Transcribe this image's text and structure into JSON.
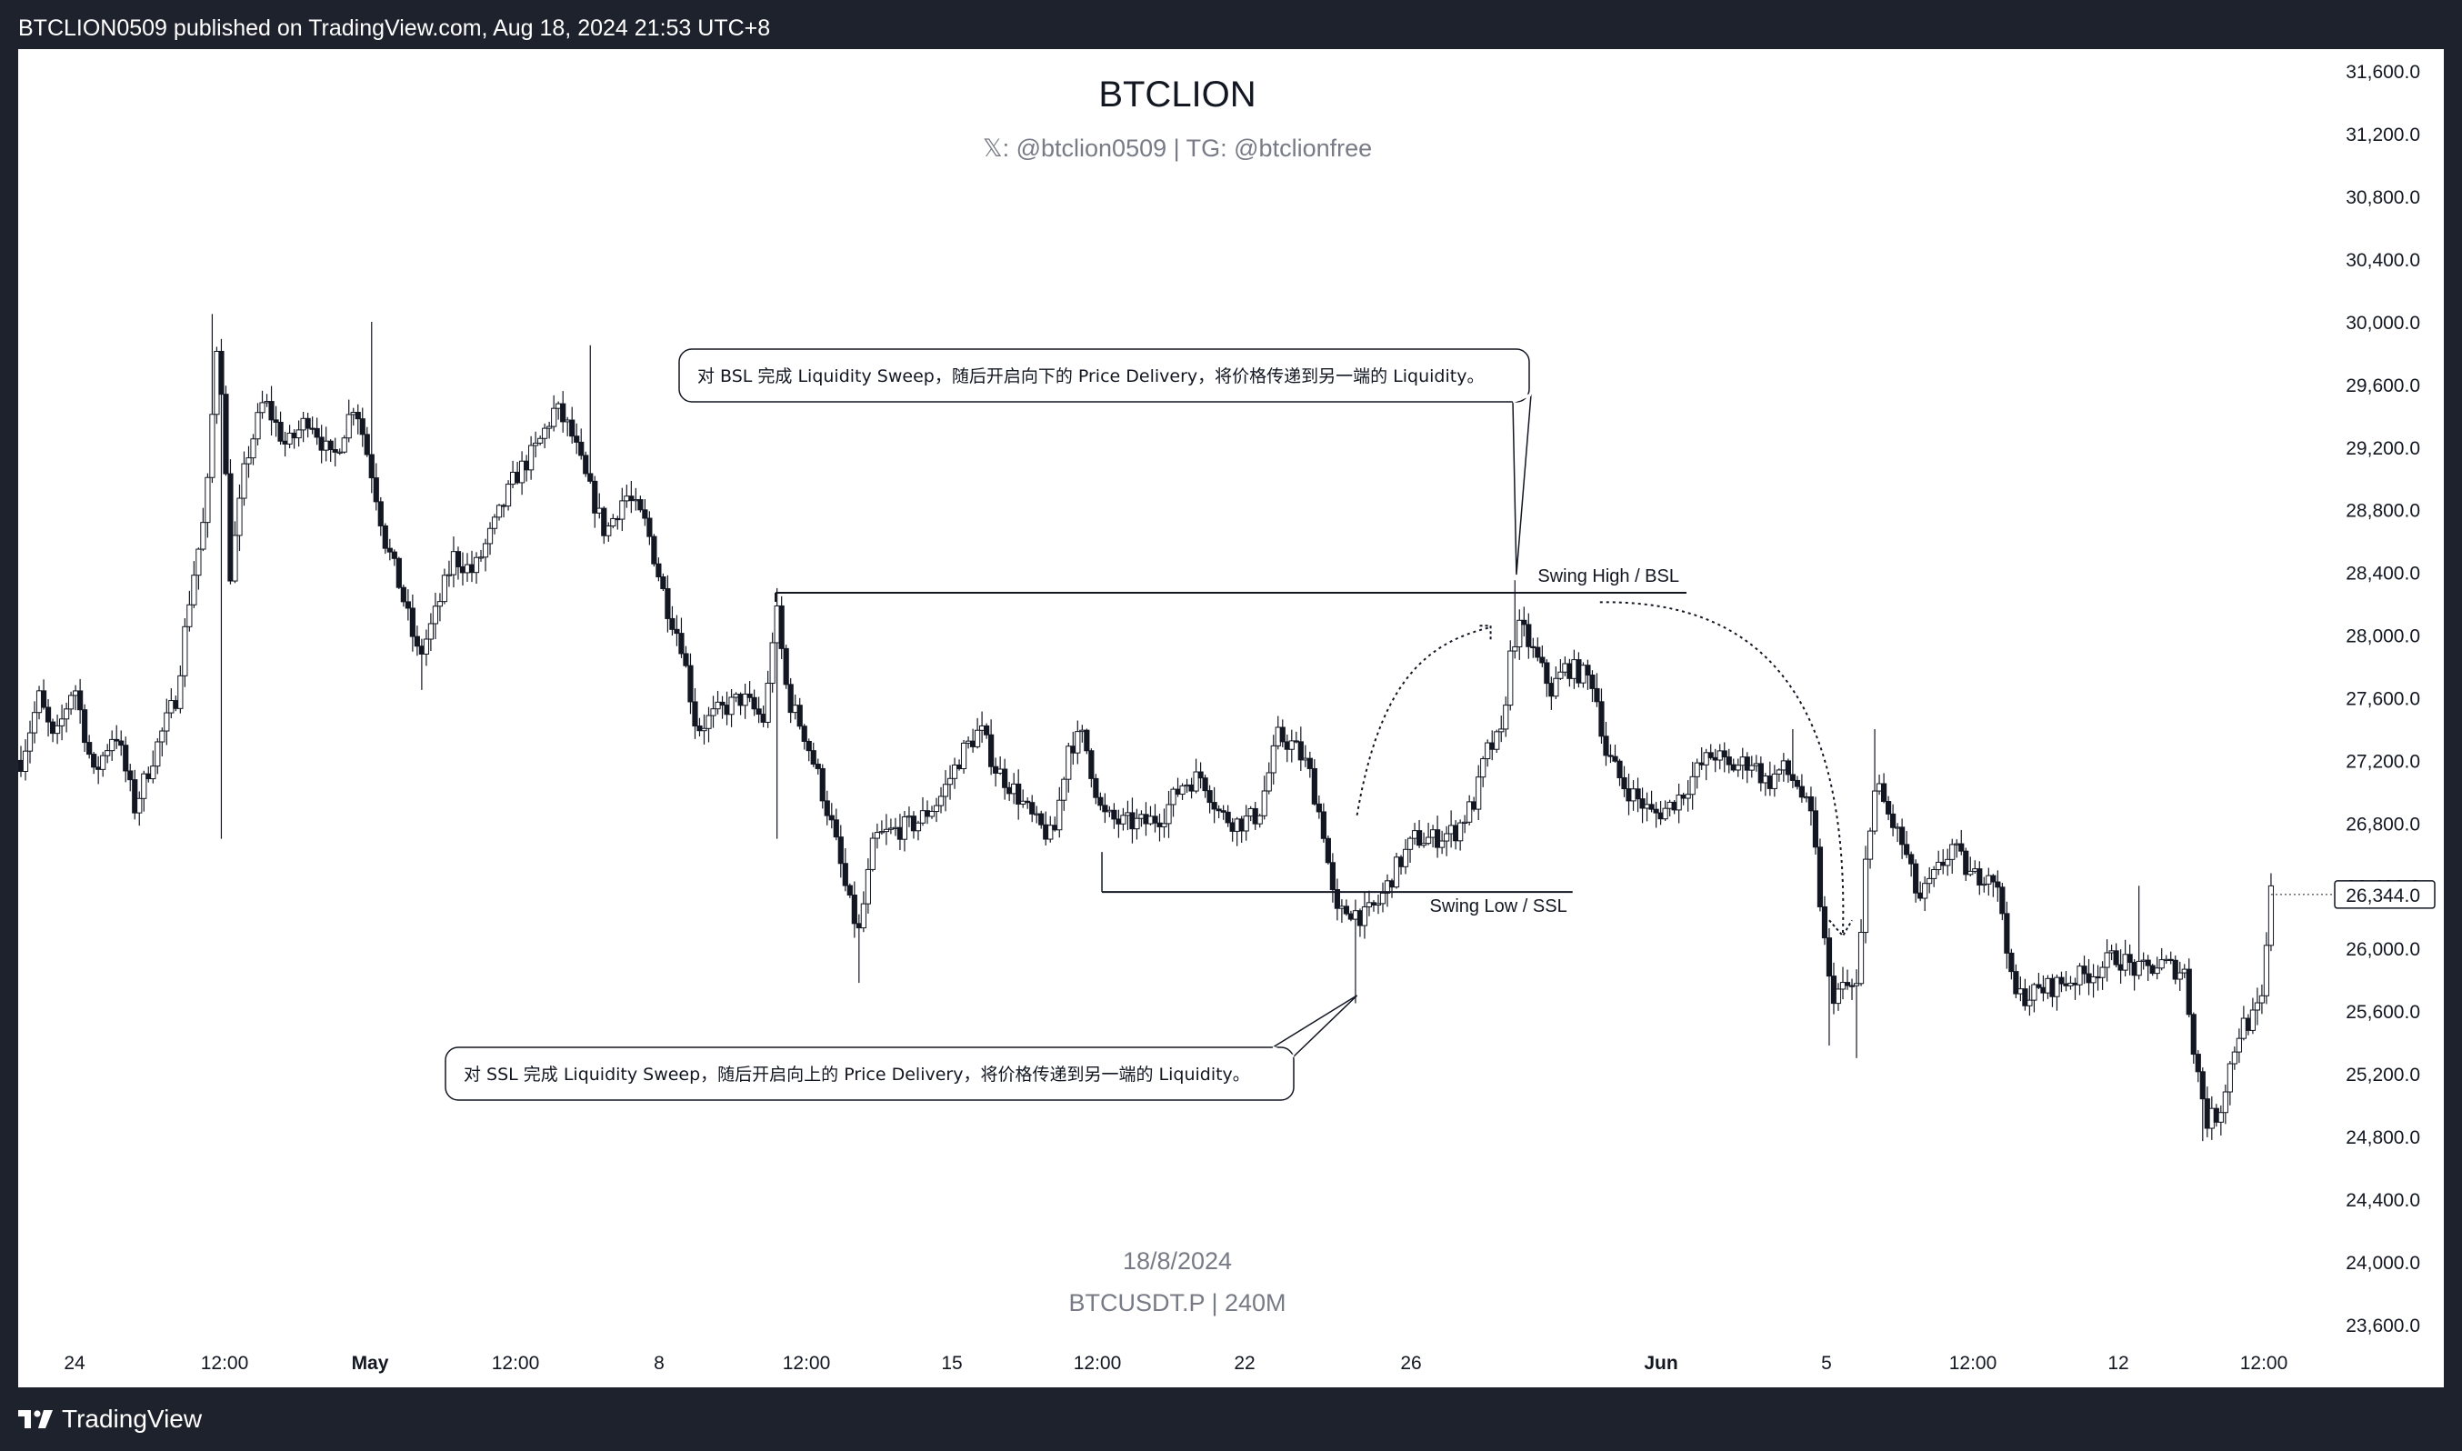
{
  "header": {
    "published_text": "BTCLION0509 published on TradingView.com, Aug 18, 2024 21:53 UTC+8"
  },
  "watermark": {
    "title": "BTCLION",
    "subtitle": "𝕏: @btclion0509 | TG: @btclionfree",
    "date": "18/8/2024",
    "symbol": "BTCUSDT.P | 240M"
  },
  "footer": {
    "brand": "TradingView"
  },
  "colors": {
    "frame": "#1e222d",
    "chart_bg": "#ffffff",
    "ink": "#131722",
    "axis_text": "#131722",
    "muted_text": "#787b86"
  },
  "chart_data": {
    "type": "candlestick",
    "symbol": "BTCUSDT.P",
    "timeframe": "240M",
    "ylim": [
      23500,
      31700
    ],
    "yticks": [
      31600,
      31200,
      30800,
      30400,
      30000,
      29600,
      29200,
      28800,
      28400,
      28000,
      27600,
      27200,
      26800,
      26400,
      26000,
      25600,
      25200,
      24800,
      24400,
      24000,
      23600
    ],
    "ytick_labels": [
      "31,600.0",
      "31,200.0",
      "30,800.0",
      "30,400.0",
      "30,000.0",
      "29,600.0",
      "29,200.0",
      "28,800.0",
      "28,400.0",
      "28,000.0",
      "27,600.0",
      "27,200.0",
      "26,800.0",
      "26,400.0",
      "26,000.0",
      "25,600.0",
      "25,200.0",
      "24,800.0",
      "24,400.0",
      "24,000.0",
      "23,600.0"
    ],
    "xtick_labels": [
      {
        "label": "24",
        "bold": false
      },
      {
        "label": "12:00",
        "bold": false
      },
      {
        "label": "May",
        "bold": true
      },
      {
        "label": "12:00",
        "bold": false
      },
      {
        "label": "8",
        "bold": false
      },
      {
        "label": "12:00",
        "bold": false
      },
      {
        "label": "15",
        "bold": false
      },
      {
        "label": "12:00",
        "bold": false
      },
      {
        "label": "22",
        "bold": false
      },
      {
        "label": "26",
        "bold": false
      },
      {
        "label": "Jun",
        "bold": true
      },
      {
        "label": "5",
        "bold": false
      },
      {
        "label": "12:00",
        "bold": false
      },
      {
        "label": "12",
        "bold": false
      },
      {
        "label": "12:00",
        "bold": false
      }
    ],
    "last_price": 26344,
    "last_price_label": "26,344.0",
    "anchors": [
      [
        0,
        27200
      ],
      [
        12,
        27600
      ],
      [
        22,
        27300
      ],
      [
        35,
        27700
      ],
      [
        48,
        27100
      ],
      [
        62,
        27400
      ],
      [
        75,
        26900
      ],
      [
        88,
        27250
      ],
      [
        102,
        27600
      ],
      [
        112,
        28300
      ],
      [
        122,
        28800
      ],
      [
        130,
        30000
      ],
      [
        138,
        28400
      ],
      [
        148,
        29100
      ],
      [
        160,
        29500
      ],
      [
        175,
        29200
      ],
      [
        190,
        29400
      ],
      [
        205,
        29100
      ],
      [
        220,
        29500
      ],
      [
        232,
        29000
      ],
      [
        240,
        28600
      ],
      [
        250,
        28300
      ],
      [
        262,
        27850
      ],
      [
        272,
        28100
      ],
      [
        285,
        28500
      ],
      [
        298,
        28400
      ],
      [
        312,
        28700
      ],
      [
        325,
        29000
      ],
      [
        340,
        29200
      ],
      [
        352,
        29450
      ],
      [
        362,
        29300
      ],
      [
        372,
        29000
      ],
      [
        385,
        28650
      ],
      [
        398,
        28900
      ],
      [
        412,
        28700
      ],
      [
        425,
        28200
      ],
      [
        435,
        27950
      ],
      [
        445,
        27400
      ],
      [
        458,
        27500
      ],
      [
        475,
        27600
      ],
      [
        490,
        27450
      ],
      [
        497,
        28200
      ],
      [
        505,
        27600
      ],
      [
        515,
        27400
      ],
      [
        525,
        27100
      ],
      [
        535,
        26750
      ],
      [
        545,
        26300
      ],
      [
        552,
        26100
      ],
      [
        562,
        26700
      ],
      [
        575,
        26750
      ],
      [
        590,
        26800
      ],
      [
        605,
        26950
      ],
      [
        620,
        27250
      ],
      [
        632,
        27400
      ],
      [
        642,
        27150
      ],
      [
        655,
        27000
      ],
      [
        668,
        26800
      ],
      [
        680,
        26700
      ],
      [
        690,
        27300
      ],
      [
        700,
        27350
      ],
      [
        712,
        26850
      ],
      [
        725,
        26800
      ],
      [
        740,
        26800
      ],
      [
        752,
        26850
      ],
      [
        765,
        27050
      ],
      [
        778,
        27100
      ],
      [
        790,
        26850
      ],
      [
        802,
        26800
      ],
      [
        815,
        26850
      ],
      [
        828,
        27350
      ],
      [
        838,
        27300
      ],
      [
        848,
        27150
      ],
      [
        858,
        26750
      ],
      [
        866,
        26200
      ],
      [
        875,
        26250
      ],
      [
        885,
        26200
      ],
      [
        895,
        26300
      ],
      [
        905,
        26500
      ],
      [
        918,
        26700
      ],
      [
        930,
        26700
      ],
      [
        945,
        26750
      ],
      [
        958,
        26950
      ],
      [
        965,
        27250
      ],
      [
        975,
        27350
      ],
      [
        982,
        27950
      ],
      [
        988,
        28050
      ],
      [
        998,
        27850
      ],
      [
        1008,
        27650
      ],
      [
        1018,
        27800
      ],
      [
        1028,
        27750
      ],
      [
        1036,
        27700
      ],
      [
        1044,
        27250
      ],
      [
        1055,
        27050
      ],
      [
        1065,
        26950
      ],
      [
        1075,
        26850
      ],
      [
        1085,
        26900
      ],
      [
        1095,
        27000
      ],
      [
        1105,
        27150
      ],
      [
        1115,
        27250
      ],
      [
        1125,
        27150
      ],
      [
        1140,
        27200
      ],
      [
        1150,
        27050
      ],
      [
        1160,
        27150
      ],
      [
        1170,
        27050
      ],
      [
        1180,
        26800
      ],
      [
        1186,
        26200
      ],
      [
        1192,
        25700
      ],
      [
        1202,
        25750
      ],
      [
        1210,
        25750
      ],
      [
        1216,
        26700
      ],
      [
        1222,
        27050
      ],
      [
        1230,
        26850
      ],
      [
        1240,
        26650
      ],
      [
        1250,
        26300
      ],
      [
        1260,
        26450
      ],
      [
        1272,
        26650
      ],
      [
        1285,
        26450
      ],
      [
        1298,
        26500
      ],
      [
        1306,
        26200
      ],
      [
        1312,
        25700
      ],
      [
        1322,
        25700
      ],
      [
        1335,
        25750
      ],
      [
        1350,
        25800
      ],
      [
        1365,
        25850
      ],
      [
        1380,
        25950
      ],
      [
        1395,
        25850
      ],
      [
        1410,
        25900
      ],
      [
        1425,
        25850
      ],
      [
        1432,
        25300
      ],
      [
        1440,
        24900
      ],
      [
        1448,
        24950
      ],
      [
        1456,
        25300
      ],
      [
        1462,
        25500
      ],
      [
        1470,
        25550
      ],
      [
        1476,
        25650
      ],
      [
        1482,
        26350
      ]
    ],
    "spikes": [
      {
        "bar": 125,
        "high": 30050,
        "low": null
      },
      {
        "bar": 131,
        "high": null,
        "low": 26700
      },
      {
        "bar": 232,
        "high": 30000,
        "low": null
      },
      {
        "bar": 264,
        "high": null,
        "low": 27650
      },
      {
        "bar": 375,
        "high": 29850,
        "low": null
      },
      {
        "bar": 497,
        "high": 28300,
        "low": null
      },
      {
        "bar": 499,
        "high": null,
        "low": 26700
      },
      {
        "bar": 552,
        "high": null,
        "low": 25780
      },
      {
        "bar": 880,
        "high": null,
        "low": 25650
      },
      {
        "bar": 985,
        "high": 28350,
        "low": null
      },
      {
        "bar": 1168,
        "high": 27400,
        "low": null
      },
      {
        "bar": 1190,
        "high": null,
        "low": 25380
      },
      {
        "bar": 1210,
        "high": null,
        "low": 25300
      },
      {
        "bar": 1220,
        "high": 27400,
        "low": null
      },
      {
        "bar": 1395,
        "high": 26400,
        "low": null
      },
      {
        "bar": 1437,
        "high": null,
        "low": 24770
      },
      {
        "bar": 1482,
        "high": 26480,
        "low": null
      }
    ],
    "annotations": {
      "bsl_line": {
        "label": "Swing High / BSL",
        "price": 28270,
        "from_bar": 497,
        "to_bar": 1097
      },
      "ssl_line": {
        "label": "Swing Low / SSL",
        "price": 26360,
        "from_bar": 712,
        "to_bar": 1022
      },
      "callout_bsl": "对 BSL 完成 Liquidity Sweep，随后开启向下的 Price Delivery，将价格传递到另一端的 Liquidity。",
      "callout_ssl": "对 SSL 完成 Liquidity Sweep，随后开启向上的 Price Delivery，将价格传递到另一端的 Liquidity。"
    }
  }
}
